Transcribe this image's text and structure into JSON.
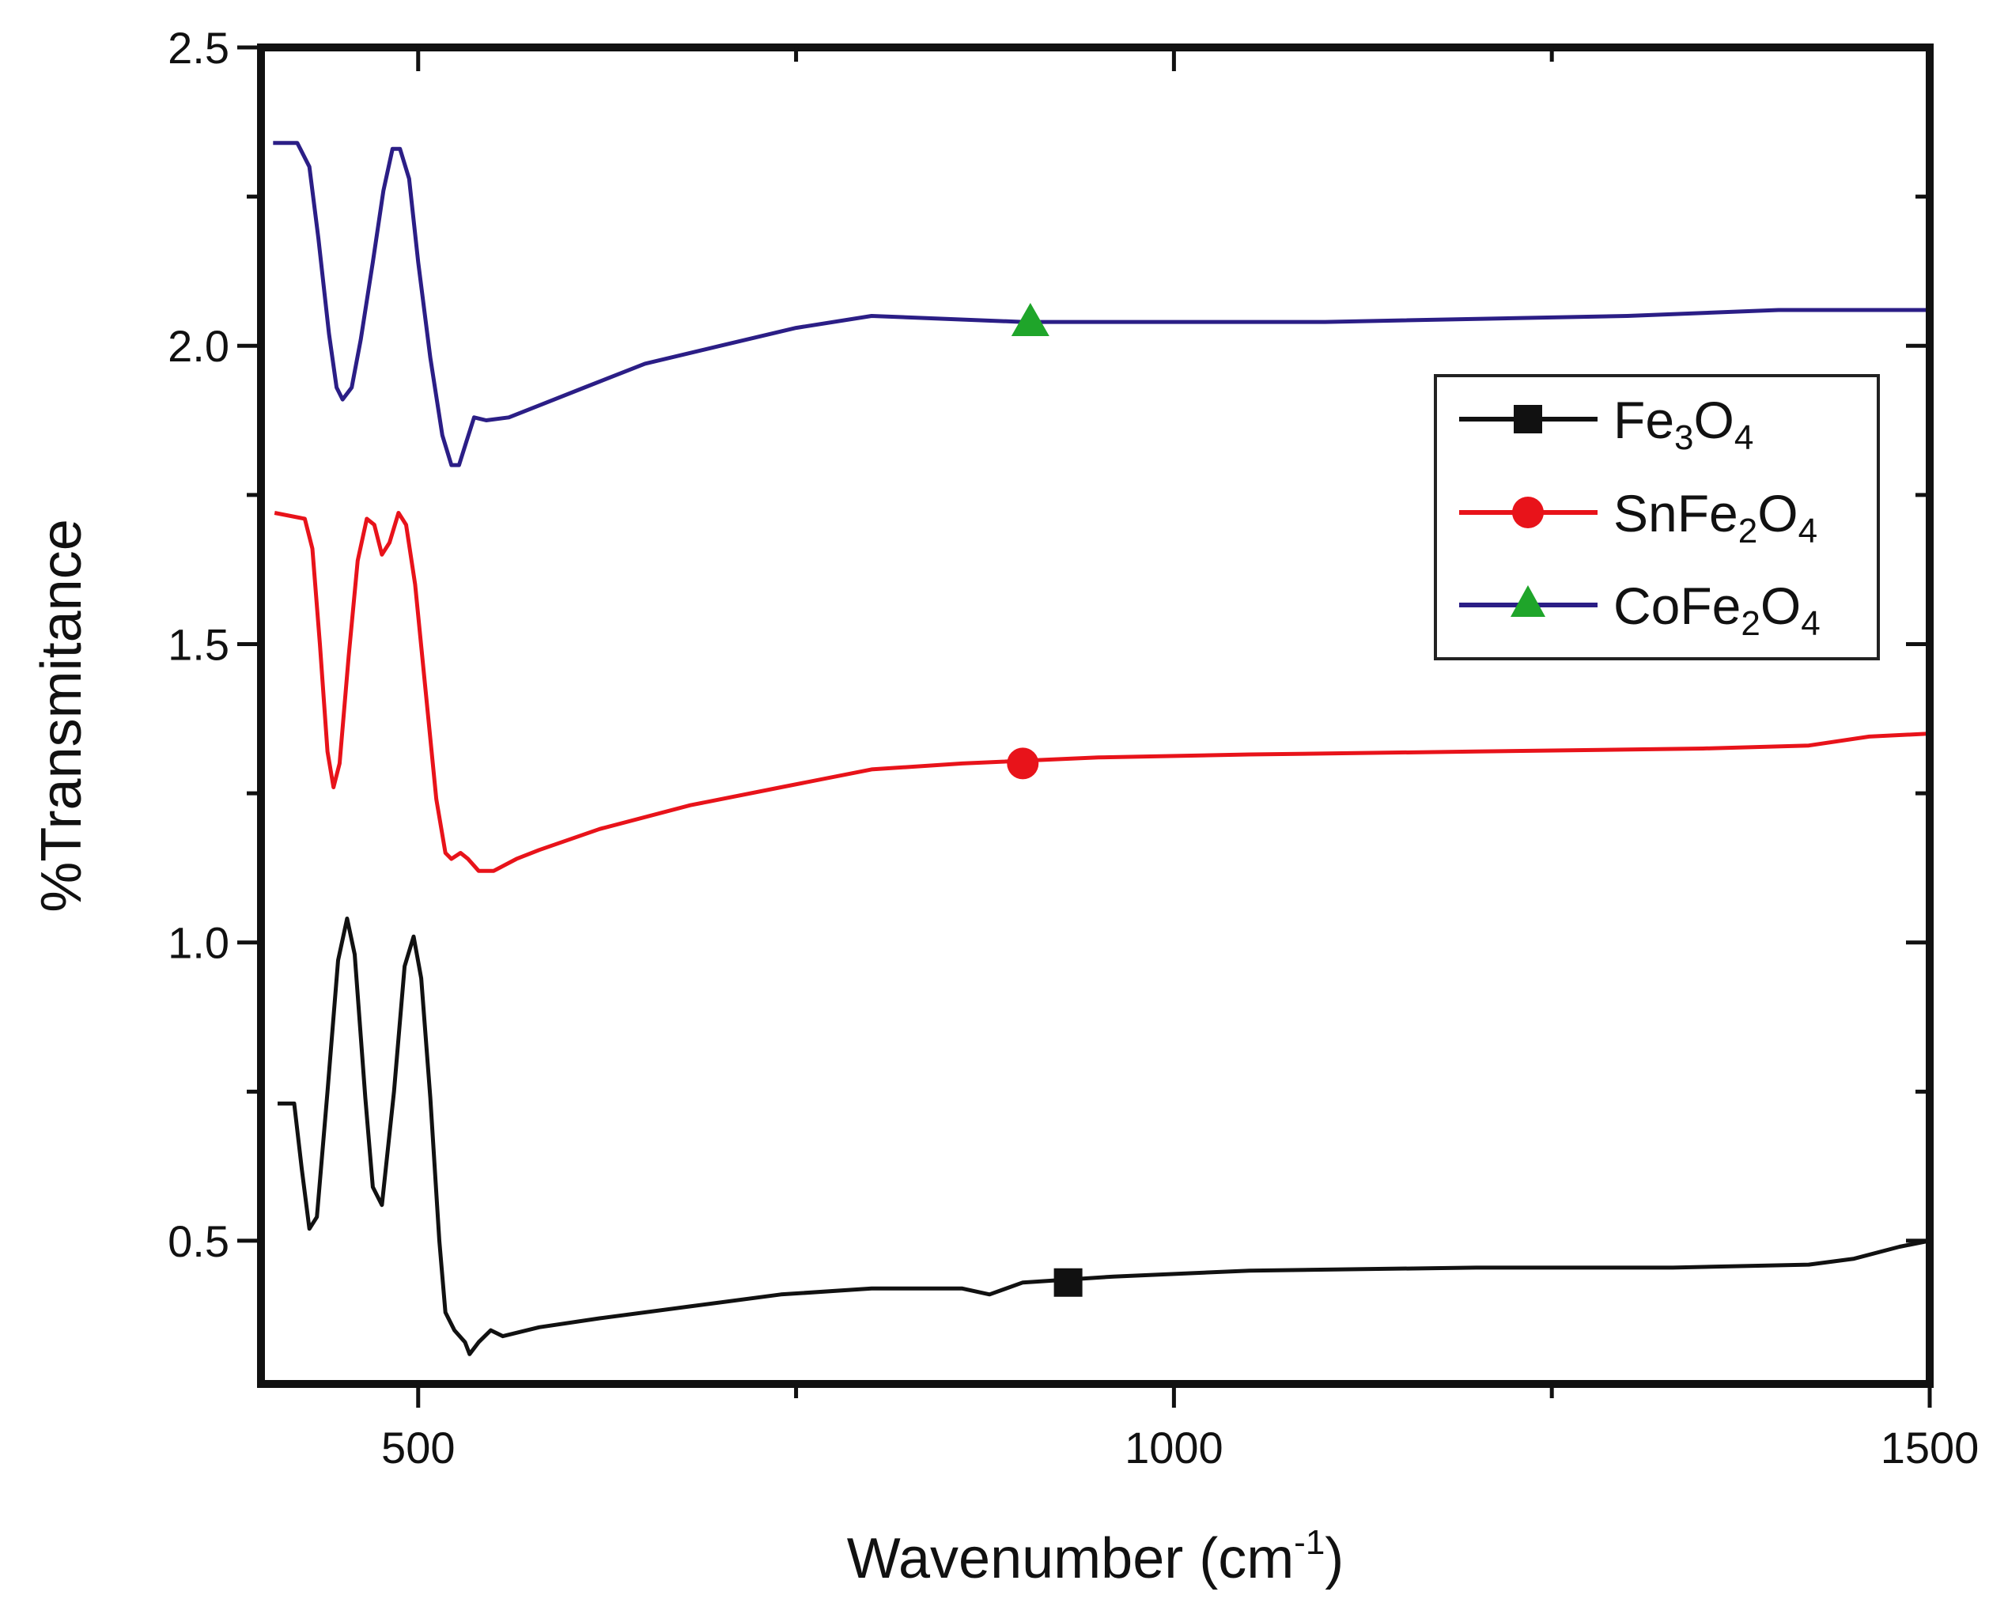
{
  "chart_data": {
    "type": "line",
    "title": "",
    "xlabel": "Wavenumber (cm-1)",
    "xlabel_parts": {
      "main": "Wavenumber (cm",
      "sup": "-1",
      "close": ")"
    },
    "ylabel": "%Transmitance",
    "xlim": [
      396,
      1500
    ],
    "ylim": [
      0.26,
      2.5
    ],
    "xticks": [
      500,
      1000,
      1500
    ],
    "xtick_labels": [
      "500",
      "1000",
      "1500"
    ],
    "yticks": [
      0.5,
      1.0,
      1.5,
      2.0,
      2.5
    ],
    "ytick_labels": [
      "0.5",
      "1.0",
      "1.5",
      "2.0",
      "2.5"
    ],
    "legend_position": "upper-right",
    "series": [
      {
        "name": "Fe3O4",
        "label_parts": {
          "a": "Fe",
          "sa": "3",
          "b": "O",
          "sb": "4"
        },
        "color": "#111111",
        "marker": "square",
        "marker_point": [
          930,
          0.43
        ],
        "points": [
          [
            407,
            0.73
          ],
          [
            418,
            0.73
          ],
          [
            423,
            0.62
          ],
          [
            428,
            0.52
          ],
          [
            433,
            0.54
          ],
          [
            440,
            0.75
          ],
          [
            447,
            0.97
          ],
          [
            453,
            1.04
          ],
          [
            458,
            0.98
          ],
          [
            465,
            0.74
          ],
          [
            470,
            0.59
          ],
          [
            476,
            0.56
          ],
          [
            484,
            0.75
          ],
          [
            491,
            0.96
          ],
          [
            497,
            1.01
          ],
          [
            502,
            0.94
          ],
          [
            508,
            0.74
          ],
          [
            514,
            0.5
          ],
          [
            518,
            0.38
          ],
          [
            524,
            0.35
          ],
          [
            531,
            0.33
          ],
          [
            534,
            0.31
          ],
          [
            540,
            0.33
          ],
          [
            548,
            0.35
          ],
          [
            556,
            0.34
          ],
          [
            580,
            0.355
          ],
          [
            620,
            0.37
          ],
          [
            680,
            0.39
          ],
          [
            740,
            0.41
          ],
          [
            800,
            0.42
          ],
          [
            860,
            0.42
          ],
          [
            878,
            0.41
          ],
          [
            900,
            0.43
          ],
          [
            960,
            0.44
          ],
          [
            1050,
            0.45
          ],
          [
            1200,
            0.455
          ],
          [
            1330,
            0.455
          ],
          [
            1420,
            0.46
          ],
          [
            1450,
            0.47
          ],
          [
            1480,
            0.49
          ],
          [
            1500,
            0.5
          ]
        ]
      },
      {
        "name": "SnFe2O4",
        "label_parts": {
          "a": "SnFe",
          "sa": "2",
          "b": "O",
          "sb": "4"
        },
        "color": "#e8131a",
        "marker": "circle",
        "marker_point": [
          900,
          1.3
        ],
        "points": [
          [
            405,
            1.72
          ],
          [
            425,
            1.71
          ],
          [
            430,
            1.66
          ],
          [
            435,
            1.5
          ],
          [
            440,
            1.32
          ],
          [
            444,
            1.26
          ],
          [
            448,
            1.3
          ],
          [
            454,
            1.48
          ],
          [
            460,
            1.64
          ],
          [
            466,
            1.71
          ],
          [
            471,
            1.7
          ],
          [
            476,
            1.65
          ],
          [
            481,
            1.67
          ],
          [
            487,
            1.72
          ],
          [
            492,
            1.7
          ],
          [
            498,
            1.6
          ],
          [
            505,
            1.42
          ],
          [
            512,
            1.24
          ],
          [
            518,
            1.15
          ],
          [
            522,
            1.14
          ],
          [
            528,
            1.15
          ],
          [
            533,
            1.14
          ],
          [
            540,
            1.12
          ],
          [
            550,
            1.12
          ],
          [
            565,
            1.14
          ],
          [
            580,
            1.155
          ],
          [
            620,
            1.19
          ],
          [
            680,
            1.23
          ],
          [
            740,
            1.26
          ],
          [
            800,
            1.29
          ],
          [
            860,
            1.3
          ],
          [
            950,
            1.31
          ],
          [
            1050,
            1.315
          ],
          [
            1200,
            1.32
          ],
          [
            1350,
            1.325
          ],
          [
            1420,
            1.33
          ],
          [
            1460,
            1.345
          ],
          [
            1500,
            1.35
          ]
        ]
      },
      {
        "name": "CoFe2O4",
        "label_parts": {
          "a": "CoFe",
          "sa": "2",
          "b": "O",
          "sb": "4"
        },
        "color": "#2b1e86",
        "marker": "triangle",
        "marker_point": [
          905,
          2.04
        ],
        "points": [
          [
            404,
            2.34
          ],
          [
            420,
            2.34
          ],
          [
            428,
            2.3
          ],
          [
            434,
            2.18
          ],
          [
            441,
            2.02
          ],
          [
            446,
            1.93
          ],
          [
            450,
            1.91
          ],
          [
            456,
            1.93
          ],
          [
            462,
            2.01
          ],
          [
            470,
            2.14
          ],
          [
            477,
            2.26
          ],
          [
            483,
            2.33
          ],
          [
            488,
            2.33
          ],
          [
            494,
            2.28
          ],
          [
            500,
            2.14
          ],
          [
            508,
            1.98
          ],
          [
            516,
            1.85
          ],
          [
            522,
            1.8
          ],
          [
            527,
            1.8
          ],
          [
            532,
            1.84
          ],
          [
            537,
            1.88
          ],
          [
            545,
            1.875
          ],
          [
            560,
            1.88
          ],
          [
            580,
            1.9
          ],
          [
            610,
            1.93
          ],
          [
            650,
            1.97
          ],
          [
            700,
            2.0
          ],
          [
            750,
            2.03
          ],
          [
            800,
            2.05
          ],
          [
            900,
            2.04
          ],
          [
            1000,
            2.04
          ],
          [
            1100,
            2.04
          ],
          [
            1300,
            2.05
          ],
          [
            1400,
            2.06
          ],
          [
            1500,
            2.06
          ]
        ]
      }
    ]
  }
}
